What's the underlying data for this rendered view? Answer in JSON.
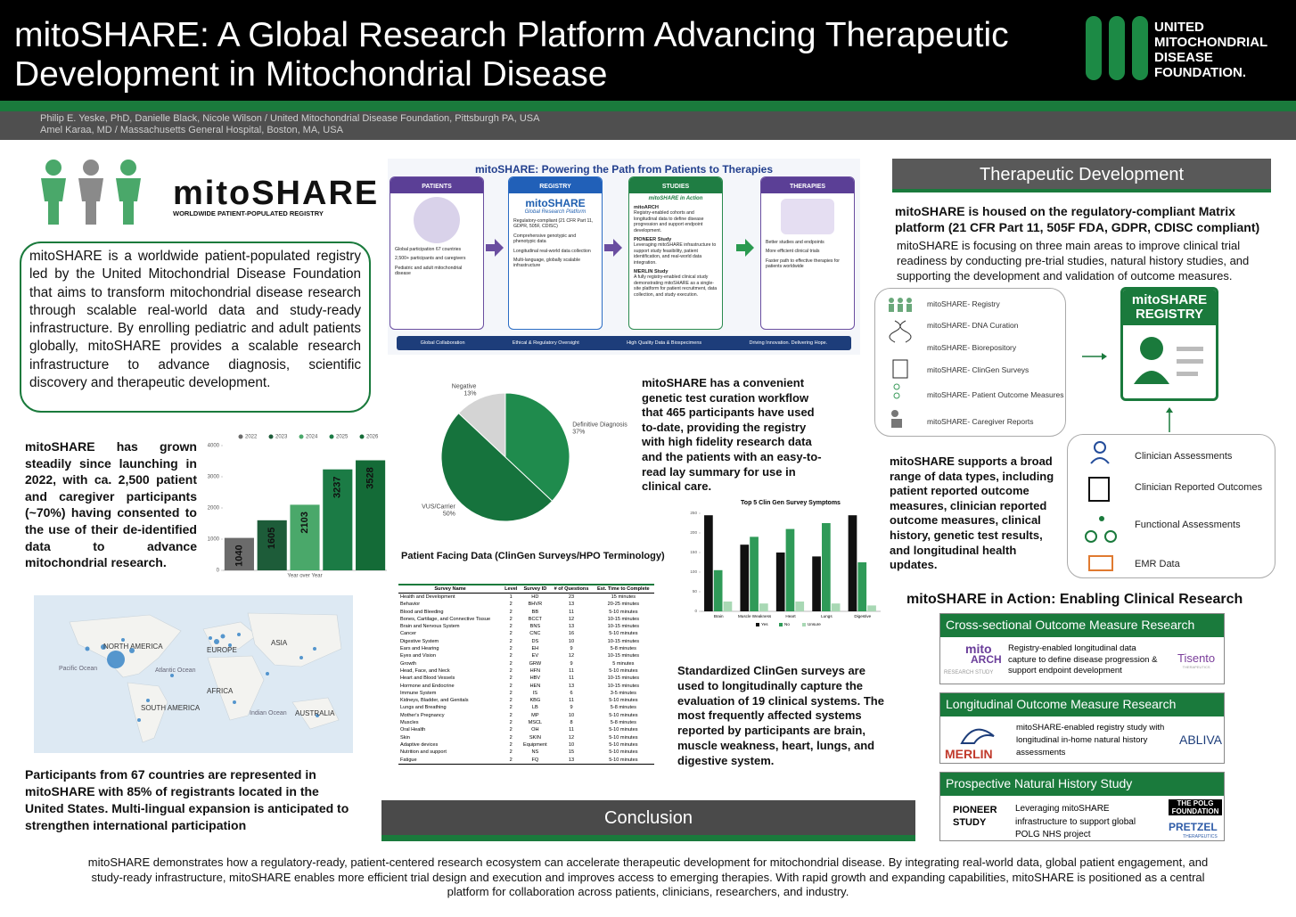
{
  "header": {
    "title": "mitoSHARE: A Global Research Platform Advancing Therapeutic Development in Mitochondrial Disease",
    "logo_lines": [
      "UNITED",
      "MITOCHONDRIAL",
      "DISEASE",
      "FOUNDATION."
    ],
    "authors": [
      "Philip E. Yeske, PhD, Danielle Black, Nicole Wilson / United Mitochondrial Disease Foundation, Pittsburgh PA, USA",
      "Amel Karaa, MD / Massachusetts General Hospital, Boston, MA, USA"
    ]
  },
  "intro": {
    "logo_title": "mitoSHARE",
    "logo_subtitle": "WORLDWIDE PATIENT-POPULATED REGISTRY",
    "text": "mitoSHARE is a worldwide patient-populated registry led by the United Mitochondrial Disease Foundation that aims to transform mitochondrial disease research through scalable real-world data and study-ready infrastructure. By enrolling pediatric and adult patients globally, mitoSHARE provides a scalable research infrastructure to advance diagnosis, scientific discovery and therapeutic development."
  },
  "growth_text": "mitoSHARE has grown steadily since launching in 2022, with ca. 2,500 patient and caregiver participants (~70%) having consented to the use of their de-identified data to advance mitochondrial research.",
  "map": {
    "labels": [
      "NORTH AMERICA",
      "EUROPE",
      "ASIA",
      "AFRICA",
      "SOUTH AMERICA",
      "AUSTRALIA",
      "Pacific Ocean",
      "Atlantic Ocean",
      "Indian Ocean"
    ]
  },
  "countries_text": "Participants from 67 countries are represented in mitoSHARE with 85% of registrants located in the United States. Multi-lingual expansion is anticipated to strengthen international participation",
  "infographic": {
    "title": "mitoSHARE: Powering the Path from Patients to Therapies",
    "columns": [
      {
        "heading": "PATIENTS",
        "items": [
          "Global participation 67 countries",
          "2,500+ participants and caregivers",
          "Pediatric and adult mitochondrial disease"
        ]
      },
      {
        "heading": "REGISTRY",
        "brand": "mitoSHARE",
        "subtitle": "Global Research Platform",
        "items": [
          "Regulatory-compliant (21 CFR Part 11, GDPR, 505F, CDISC)",
          "Comprehensive genotypic and phenotypic data",
          "Longitudinal real-world data collection",
          "Multi-language, globally scalable infrastructure"
        ]
      },
      {
        "heading": "STUDIES",
        "subtitle": "mitoSHARE in Action",
        "studies": [
          {
            "name": "mitoARCH",
            "text": "Registry-enabled cohorts and longitudinal data to define disease progression and support endpoint development."
          },
          {
            "name": "PIONEER Study",
            "text": "Leveraging mitoSHARE infrastructure to support study feasibility, patient identification, and real-world data integration."
          },
          {
            "name": "MERLIN Study",
            "text": "A fully registry-enabled clinical study demonstrating mitoSHARE as a single-site platform for patient recruitment, data collection, and study execution."
          }
        ]
      },
      {
        "heading": "THERAPIES",
        "items": [
          "Better studies and endpoints",
          "More efficient clinical trials",
          "Faster path to effective therapies for patients worldwide"
        ]
      }
    ],
    "footer": [
      "Global Collaboration",
      "Ethical & Regulatory Oversight",
      "High Quality Data & Biospecimens",
      "Driving Innovation. Delivering Hope."
    ]
  },
  "curation_text": "mitoSHARE has a convenient genetic test curation workflow that 465 participants have used to-date, providing the registry with high fidelity research data and the patients with an easy-to-read lay summary for use in clinical care.",
  "table": {
    "title": "Patient Facing Data (ClinGen Surveys/HPO Terminology)",
    "columns": [
      "Survey Name",
      "Level",
      "Survey ID",
      "# of Questions",
      "Est. Time to Complete"
    ],
    "rows": [
      [
        "Health and Development",
        "1",
        "HD",
        "23",
        "15 minutes"
      ],
      [
        "Behavior",
        "2",
        "BHVR",
        "13",
        "20-25 minutes"
      ],
      [
        "Blood and Bleeding",
        "2",
        "BB",
        "11",
        "5-10 minutes"
      ],
      [
        "Bones, Cartilage, and Connective Tissue",
        "2",
        "BCCT",
        "12",
        "10-15 minutes"
      ],
      [
        "Brain and Nervous System",
        "2",
        "BNS",
        "13",
        "10-15 minutes"
      ],
      [
        "Cancer",
        "2",
        "CNC",
        "16",
        "5-10 minutes"
      ],
      [
        "Digestive System",
        "2",
        "DS",
        "10",
        "10-15 minutes"
      ],
      [
        "Ears and Hearing",
        "2",
        "EH",
        "9",
        "5-8 minutes"
      ],
      [
        "Eyes and Vision",
        "2",
        "EV",
        "12",
        "10-15 minutes"
      ],
      [
        "Growth",
        "2",
        "GRW",
        "9",
        "5 minutes"
      ],
      [
        "Head, Face, and Neck",
        "2",
        "HFN",
        "11",
        "5-10 minutes"
      ],
      [
        "Heart and Blood Vessels",
        "2",
        "HBV",
        "11",
        "10-15 minutes"
      ],
      [
        "Hormone and Endocrine",
        "2",
        "HEN",
        "13",
        "10-15 minutes"
      ],
      [
        "Immune System",
        "2",
        "IS",
        "6",
        "3-5 minutes"
      ],
      [
        "Kidneys, Bladder, and Genitals",
        "2",
        "KBG",
        "11",
        "5-10 minutes"
      ],
      [
        "Lungs and Breathing",
        "2",
        "LB",
        "9",
        "5-8 minutes"
      ],
      [
        "Mother's Pregnancy",
        "2",
        "MP",
        "10",
        "5-10 minutes"
      ],
      [
        "Muscles",
        "2",
        "MSCL",
        "8",
        "5-8 minutes"
      ],
      [
        "Oral Health",
        "2",
        "OH",
        "11",
        "5-10 minutes"
      ],
      [
        "Skin",
        "2",
        "SKIN",
        "12",
        "5-10 minutes"
      ],
      [
        "Adaptive devices",
        "2",
        "Equipment",
        "10",
        "5-10 minutes"
      ],
      [
        "Nutrition and support",
        "2",
        "NS",
        "15",
        "5-10 minutes"
      ],
      [
        "Fatigue",
        "2",
        "FQ",
        "13",
        "5-10 minutes"
      ]
    ]
  },
  "clingen_text": "Standardized ClinGen surveys are used to longitudinally capture the evaluation of 19 clinical systems. The most frequently affected systems reported by participants are brain, muscle weakness, heart, lungs, and digestive system.",
  "therapeutic": {
    "heading": "Therapeutic Development",
    "lead": "mitoSHARE is housed on the regulatory-compliant Matrix platform (21 CFR Part 11, 505F FDA, GDPR, CDISC compliant)",
    "text": "mitoSHARE is focusing on three main areas to improve clinical trial readiness by conducting pre-trial studies, natural history studies, and supporting the development and validation of outcome measures.",
    "modules": [
      "mitoSHARE- Registry",
      "mitoSHARE- DNA Curation",
      "mitoSHARE- Biorepository",
      "mitoSHARE- ClinGen Surveys",
      "mitoSHARE- Patient Outcome Measures",
      "mitoSHARE- Caregiver Reports"
    ],
    "registry_card": [
      "mitoSHARE",
      "REGISTRY"
    ],
    "data_types": [
      "Clinician Assessments",
      "Clinician Reported Outcomes",
      "Functional Assessments",
      "EMR Data"
    ],
    "supports_text": "mitoSHARE supports a broad range of data types, including patient reported outcome measures, clinician reported outcome measures, clinical history, genetic test results, and longitudinal health updates."
  },
  "action": {
    "title": "mitoSHARE in Action: Enabling Clinical Research",
    "cards": [
      {
        "heading": "Cross-sectional Outcome Measure Research",
        "logo": [
          "mito",
          "ARCH",
          "RESEARCH STUDY"
        ],
        "text": "Registry-enabled longitudinal data capture to define disease progression & support endpoint development",
        "partner": [
          "Tisento",
          "THERAPEUTICS"
        ]
      },
      {
        "heading": "Longitudinal Outcome Measure Research",
        "logo": [
          "MERLIN"
        ],
        "text": "mitoSHARE-enabled registry study with longitudinal in-home natural history assessments",
        "partner": [
          "ABLIVA"
        ]
      },
      {
        "heading": "Prospective Natural History Study",
        "logo": [
          "PIONEER",
          "STUDY"
        ],
        "text": "Leveraging mitoSHARE infrastructure to support global POLG NHS project",
        "partner": [
          "THE POLG FOUNDATION",
          "PRETZEL",
          "THERAPEUTICS"
        ]
      }
    ]
  },
  "conclusion": {
    "heading": "Conclusion",
    "text": "mitoSHARE demonstrates how a regulatory-ready, patient-centered research ecosystem can accelerate therapeutic development for mitochondrial disease. By integrating real-world data, global patient engagement, and study-ready infrastructure, mitoSHARE enables more efficient trial design and execution and improves access to emerging therapies. With rapid growth and expanding capabilities, mitoSHARE is positioned as a central platform for collaboration across patients, clinicians, researchers, and industry."
  },
  "chart_data": [
    {
      "type": "bar",
      "categories": [
        "2022",
        "2023",
        "2024",
        "2025",
        "2026"
      ],
      "values": [
        1040,
        1605,
        2103,
        3237,
        3528
      ],
      "colors": [
        "#6b6b6b",
        "#1d5c39",
        "#4aa86a",
        "#1b7b45",
        "#146b37"
      ],
      "x_label": "Year over Year",
      "ylim": [
        0,
        4000
      ],
      "yticks": [
        0,
        1000,
        2000,
        3000,
        4000
      ],
      "legend": "top"
    },
    {
      "type": "pie",
      "categories": [
        "Negative",
        "Definitive Diagnosis",
        "VUS/Carrier"
      ],
      "values": [
        13,
        37,
        50
      ],
      "value_labels": [
        "13%",
        "37%",
        "50%"
      ],
      "colors": [
        "#d4d4d4",
        "#1f8b4d",
        "#16733d"
      ]
    },
    {
      "type": "bar",
      "title": "Top 5 Clin Gen Survey Symptoms",
      "categories": [
        "Brain",
        "Muscle Weakness",
        "Heart",
        "Lungs",
        "Digestive"
      ],
      "series": [
        {
          "name": "Yes",
          "color": "#111111",
          "values": [
            245,
            170,
            150,
            140,
            245
          ]
        },
        {
          "name": "No",
          "color": "#2f9a58",
          "values": [
            105,
            190,
            210,
            225,
            125
          ]
        },
        {
          "name": "Unsure",
          "color": "#a8d8b4",
          "values": [
            25,
            20,
            25,
            20,
            15
          ]
        }
      ],
      "ylim": [
        0,
        250
      ],
      "yticks": [
        0,
        50,
        100,
        150,
        200,
        250
      ],
      "legend": "bottom"
    }
  ]
}
